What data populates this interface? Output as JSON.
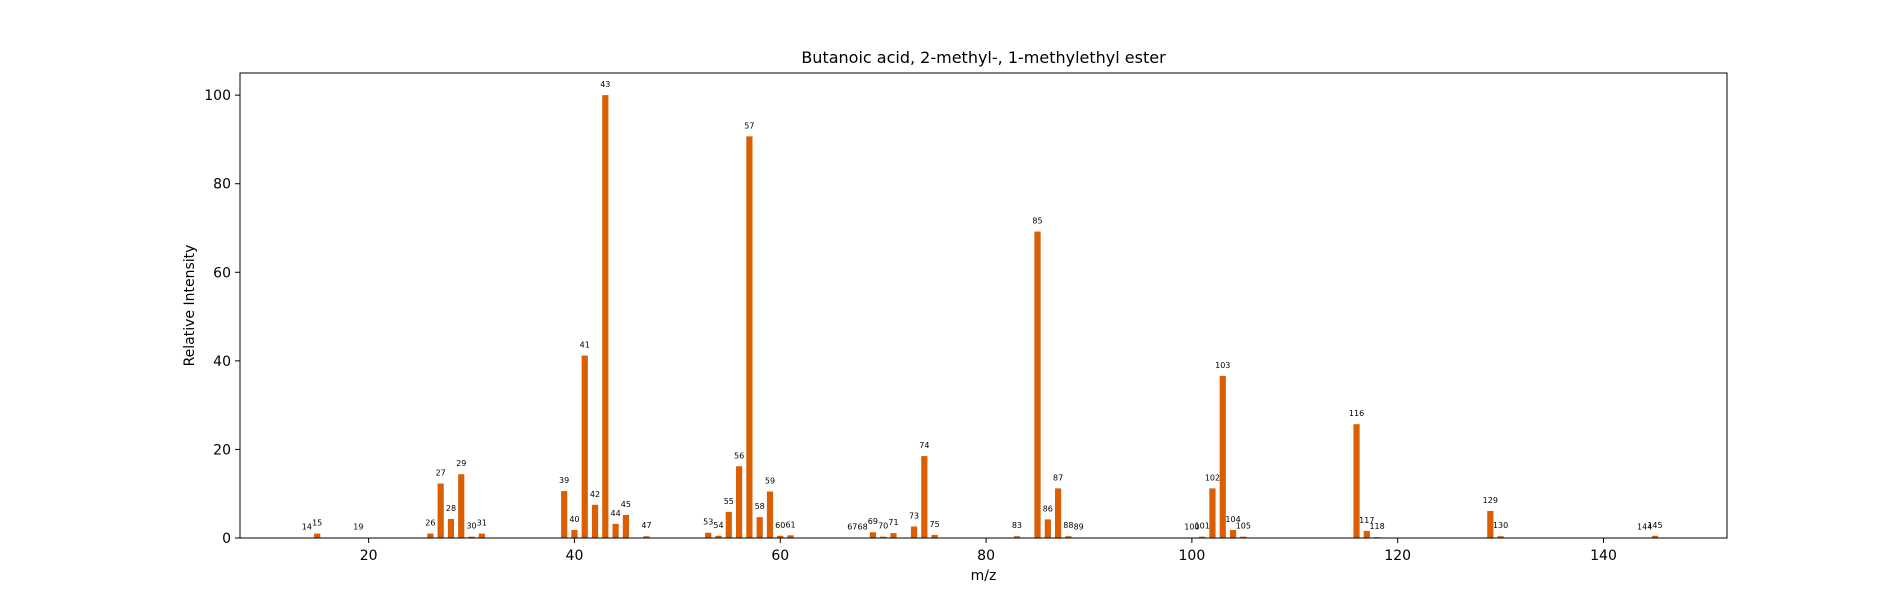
{
  "chart_data": {
    "type": "bar",
    "title": "Butanoic acid, 2-methyl-, 1-methylethyl ester",
    "xlabel": "m/z",
    "ylabel": "Relative Intensity",
    "xlim": [
      7.5,
      152
    ],
    "ylim": [
      0,
      105
    ],
    "xticks": [
      20,
      40,
      60,
      80,
      100,
      120,
      140
    ],
    "yticks": [
      0,
      20,
      40,
      60,
      80,
      100
    ],
    "grid": false,
    "bar_color": "#d95f02",
    "x": [
      14,
      15,
      19,
      26,
      27,
      28,
      29,
      30,
      31,
      39,
      40,
      41,
      42,
      43,
      44,
      45,
      47,
      53,
      54,
      55,
      56,
      57,
      58,
      59,
      60,
      61,
      67,
      68,
      69,
      70,
      71,
      73,
      74,
      75,
      83,
      85,
      86,
      87,
      88,
      89,
      100,
      101,
      102,
      103,
      104,
      105,
      116,
      117,
      118,
      129,
      130,
      144,
      145
    ],
    "values": [
      0.1,
      1.0,
      0.1,
      1.0,
      12.3,
      4.3,
      14.4,
      0.3,
      1.0,
      10.6,
      1.8,
      41.2,
      7.5,
      100.0,
      3.2,
      5.2,
      0.4,
      1.2,
      0.5,
      5.9,
      16.2,
      90.7,
      4.7,
      10.5,
      0.5,
      0.6,
      0.1,
      0.1,
      1.3,
      0.3,
      1.1,
      2.6,
      18.5,
      0.7,
      0.4,
      69.2,
      4.2,
      11.2,
      0.4,
      0.1,
      0.1,
      0.3,
      11.2,
      36.6,
      1.8,
      0.3,
      25.7,
      1.6,
      0.2,
      6.1,
      0.4,
      0.1,
      0.5
    ]
  }
}
